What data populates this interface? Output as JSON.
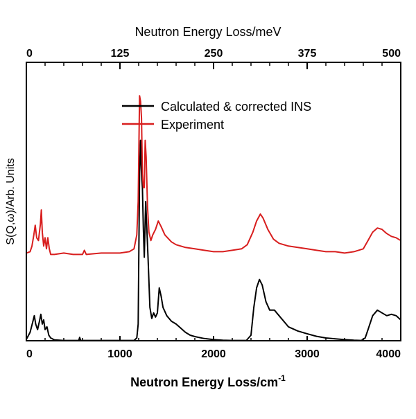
{
  "chart_data": {
    "type": "line",
    "xlabel": "Neutron Energy Loss/cm",
    "xlabel_superscript": "-1",
    "x2label": "Neutron Energy Loss/meV",
    "ylabel": "S(Q,ω)/Arb. Units",
    "xlim": [
      0,
      4000
    ],
    "x2lim": [
      0,
      500
    ],
    "ylim": [
      0,
      1
    ],
    "x_ticks": [
      0,
      1000,
      2000,
      3000,
      4000
    ],
    "x_tick_labels": [
      "0",
      "1000",
      "2000",
      "3000",
      "4000"
    ],
    "x2_ticks": [
      0,
      125,
      250,
      375,
      500
    ],
    "x2_tick_labels": [
      "0",
      "125",
      "250",
      "375",
      "500"
    ],
    "y_tick_labels": false,
    "grid": false,
    "legend_position": "top-center",
    "series": [
      {
        "name": "Calculated & corrected INS",
        "color": "#000000",
        "points": [
          [
            0,
            0.005
          ],
          [
            40,
            0.03
          ],
          [
            70,
            0.07
          ],
          [
            85,
            0.09
          ],
          [
            100,
            0.06
          ],
          [
            120,
            0.04
          ],
          [
            140,
            0.07
          ],
          [
            155,
            0.095
          ],
          [
            170,
            0.06
          ],
          [
            185,
            0.075
          ],
          [
            200,
            0.04
          ],
          [
            220,
            0.05
          ],
          [
            240,
            0.02
          ],
          [
            260,
            0.01
          ],
          [
            300,
            0.003
          ],
          [
            400,
            0.001
          ],
          [
            560,
            0.001
          ],
          [
            570,
            0.012
          ],
          [
            580,
            0.001
          ],
          [
            1000,
            0.001
          ],
          [
            1150,
            0.001
          ],
          [
            1180,
            0.01
          ],
          [
            1195,
            0.06
          ],
          [
            1210,
            0.6
          ],
          [
            1220,
            0.72
          ],
          [
            1230,
            0.6
          ],
          [
            1240,
            0.55
          ],
          [
            1250,
            0.4
          ],
          [
            1260,
            0.3
          ],
          [
            1275,
            0.5
          ],
          [
            1285,
            0.42
          ],
          [
            1300,
            0.3
          ],
          [
            1320,
            0.12
          ],
          [
            1340,
            0.08
          ],
          [
            1360,
            0.1
          ],
          [
            1380,
            0.085
          ],
          [
            1400,
            0.1
          ],
          [
            1420,
            0.19
          ],
          [
            1440,
            0.16
          ],
          [
            1460,
            0.12
          ],
          [
            1500,
            0.09
          ],
          [
            1550,
            0.07
          ],
          [
            1600,
            0.06
          ],
          [
            1650,
            0.045
          ],
          [
            1700,
            0.03
          ],
          [
            1750,
            0.02
          ],
          [
            1800,
            0.015
          ],
          [
            1900,
            0.008
          ],
          [
            2000,
            0.004
          ],
          [
            2100,
            0.002
          ],
          [
            2200,
            0.001
          ],
          [
            2350,
            0.001
          ],
          [
            2400,
            0.02
          ],
          [
            2430,
            0.12
          ],
          [
            2460,
            0.19
          ],
          [
            2490,
            0.22
          ],
          [
            2520,
            0.2
          ],
          [
            2560,
            0.14
          ],
          [
            2600,
            0.11
          ],
          [
            2650,
            0.11
          ],
          [
            2700,
            0.09
          ],
          [
            2800,
            0.05
          ],
          [
            2900,
            0.035
          ],
          [
            3000,
            0.025
          ],
          [
            3100,
            0.016
          ],
          [
            3200,
            0.01
          ],
          [
            3300,
            0.007
          ],
          [
            3400,
            0.004
          ],
          [
            3500,
            0.002
          ],
          [
            3580,
            0.001
          ],
          [
            3620,
            0.01
          ],
          [
            3650,
            0.04
          ],
          [
            3700,
            0.09
          ],
          [
            3750,
            0.11
          ],
          [
            3800,
            0.1
          ],
          [
            3850,
            0.09
          ],
          [
            3900,
            0.095
          ],
          [
            3950,
            0.09
          ],
          [
            4000,
            0.075
          ]
        ]
      },
      {
        "name": "Experiment",
        "color": "#d81e1e",
        "points": [
          [
            0,
            0.315
          ],
          [
            40,
            0.32
          ],
          [
            60,
            0.34
          ],
          [
            80,
            0.38
          ],
          [
            95,
            0.415
          ],
          [
            110,
            0.37
          ],
          [
            130,
            0.36
          ],
          [
            150,
            0.42
          ],
          [
            160,
            0.47
          ],
          [
            170,
            0.39
          ],
          [
            185,
            0.34
          ],
          [
            200,
            0.37
          ],
          [
            215,
            0.33
          ],
          [
            230,
            0.37
          ],
          [
            245,
            0.33
          ],
          [
            260,
            0.31
          ],
          [
            300,
            0.31
          ],
          [
            400,
            0.315
          ],
          [
            500,
            0.31
          ],
          [
            600,
            0.31
          ],
          [
            620,
            0.325
          ],
          [
            640,
            0.31
          ],
          [
            800,
            0.315
          ],
          [
            1000,
            0.315
          ],
          [
            1100,
            0.32
          ],
          [
            1150,
            0.33
          ],
          [
            1180,
            0.38
          ],
          [
            1195,
            0.5
          ],
          [
            1210,
            0.88
          ],
          [
            1220,
            0.86
          ],
          [
            1230,
            0.8
          ],
          [
            1240,
            0.6
          ],
          [
            1250,
            0.55
          ],
          [
            1260,
            0.55
          ],
          [
            1270,
            0.72
          ],
          [
            1280,
            0.66
          ],
          [
            1295,
            0.48
          ],
          [
            1310,
            0.39
          ],
          [
            1330,
            0.36
          ],
          [
            1350,
            0.38
          ],
          [
            1380,
            0.4
          ],
          [
            1410,
            0.43
          ],
          [
            1440,
            0.41
          ],
          [
            1480,
            0.38
          ],
          [
            1550,
            0.355
          ],
          [
            1600,
            0.345
          ],
          [
            1700,
            0.335
          ],
          [
            1800,
            0.33
          ],
          [
            1900,
            0.325
          ],
          [
            2000,
            0.32
          ],
          [
            2100,
            0.32
          ],
          [
            2200,
            0.325
          ],
          [
            2300,
            0.33
          ],
          [
            2360,
            0.345
          ],
          [
            2420,
            0.39
          ],
          [
            2460,
            0.43
          ],
          [
            2500,
            0.455
          ],
          [
            2530,
            0.44
          ],
          [
            2580,
            0.4
          ],
          [
            2640,
            0.365
          ],
          [
            2700,
            0.35
          ],
          [
            2800,
            0.34
          ],
          [
            2900,
            0.335
          ],
          [
            3000,
            0.33
          ],
          [
            3100,
            0.325
          ],
          [
            3200,
            0.32
          ],
          [
            3300,
            0.32
          ],
          [
            3400,
            0.315
          ],
          [
            3500,
            0.32
          ],
          [
            3600,
            0.33
          ],
          [
            3650,
            0.36
          ],
          [
            3700,
            0.39
          ],
          [
            3750,
            0.405
          ],
          [
            3800,
            0.4
          ],
          [
            3850,
            0.385
          ],
          [
            3900,
            0.375
          ],
          [
            3950,
            0.37
          ],
          [
            4000,
            0.36
          ]
        ]
      }
    ]
  }
}
